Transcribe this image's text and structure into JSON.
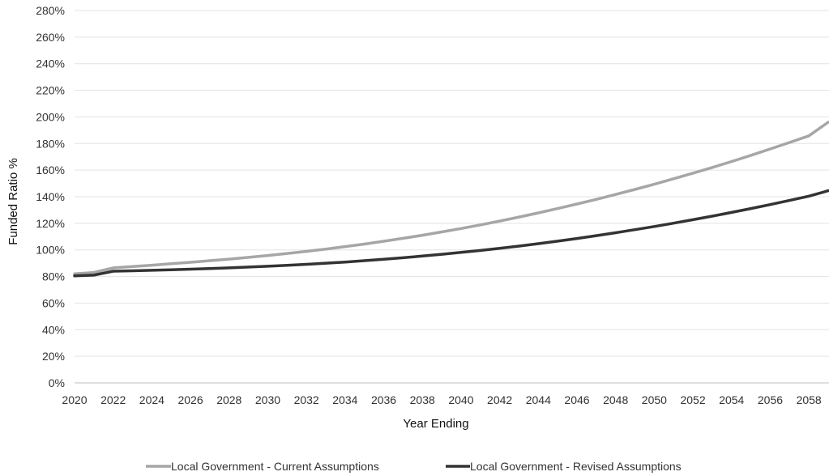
{
  "chart_data": {
    "type": "line",
    "xlabel": "Year Ending",
    "ylabel": "Funded Ratio %",
    "x": [
      2020,
      2021,
      2022,
      2023,
      2024,
      2025,
      2026,
      2027,
      2028,
      2029,
      2030,
      2031,
      2032,
      2033,
      2034,
      2035,
      2036,
      2037,
      2038,
      2039,
      2040,
      2041,
      2042,
      2043,
      2044,
      2045,
      2046,
      2047,
      2048,
      2049,
      2050,
      2051,
      2052,
      2053,
      2054,
      2055,
      2056,
      2057,
      2058,
      2059
    ],
    "x_tick_labels": [
      "2020",
      "2022",
      "2024",
      "2026",
      "2028",
      "2030",
      "2032",
      "2034",
      "2036",
      "2038",
      "2040",
      "2042",
      "2044",
      "2046",
      "2048",
      "2050",
      "2052",
      "2054",
      "2056",
      "2058"
    ],
    "ylim": [
      0,
      280
    ],
    "y_tick_labels": [
      "0%",
      "20%",
      "40%",
      "60%",
      "80%",
      "100%",
      "120%",
      "140%",
      "160%",
      "180%",
      "200%",
      "220%",
      "240%",
      "260%",
      "280%"
    ],
    "grid": "horizontal",
    "legend_position": "bottom",
    "series": [
      {
        "name": "Local Government - Current Assumptions",
        "color": "#a6a6a6",
        "values": [
          82,
          83,
          86.5,
          87.5,
          88.5,
          89.6,
          90.7,
          91.9,
          93.1,
          94.4,
          95.8,
          97.3,
          98.9,
          100.6,
          102.5,
          104.4,
          106.5,
          108.7,
          111,
          113.5,
          116.1,
          118.8,
          121.7,
          124.7,
          127.8,
          131.1,
          134.5,
          138,
          141.7,
          145.5,
          149.4,
          153.5,
          157.7,
          162,
          166.5,
          171.1,
          175.9,
          180.8,
          185.8,
          196
        ]
      },
      {
        "name": "Local Government - Revised Assumptions",
        "color": "#333333",
        "values": [
          80.5,
          81,
          84,
          84.3,
          84.7,
          85.1,
          85.5,
          86,
          86.5,
          87.1,
          87.7,
          88.4,
          89.2,
          90,
          90.9,
          91.9,
          93,
          94.1,
          95.4,
          96.7,
          98.1,
          99.6,
          101.2,
          102.9,
          104.7,
          106.6,
          108.6,
          110.7,
          112.9,
          115.2,
          117.6,
          120.1,
          122.7,
          125.4,
          128.2,
          131.1,
          134.1,
          137.2,
          140.4,
          144.5
        ]
      }
    ]
  }
}
